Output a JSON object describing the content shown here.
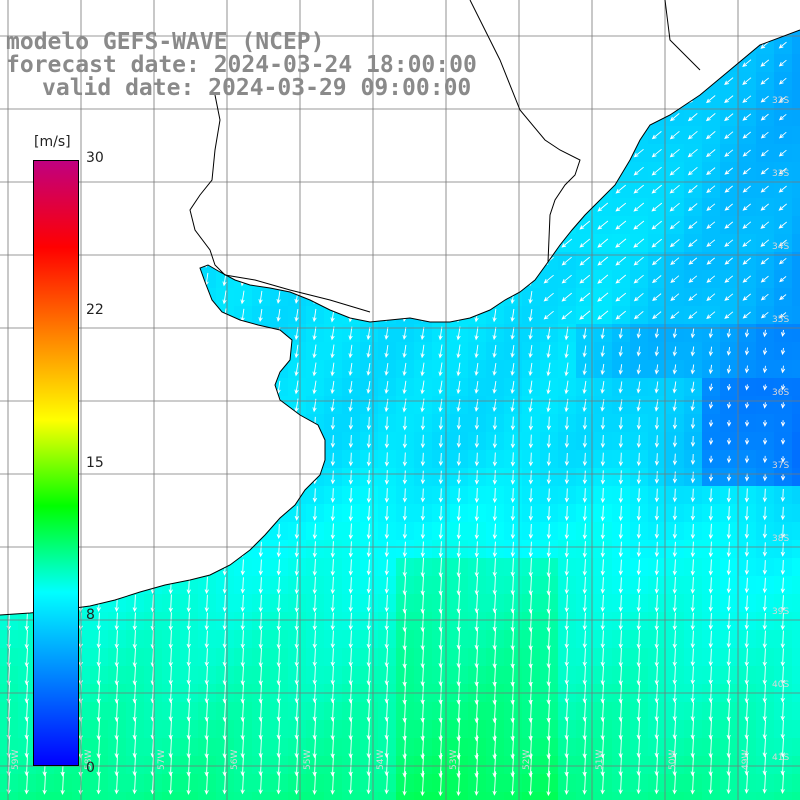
{
  "title": {
    "model": "modelo GEFS-WAVE (NCEP)",
    "forecast": "forecast date: 2024-03-24 18:00:00",
    "valid": "valid date: 2024-03-29 09:00:00"
  },
  "colorbar": {
    "unit": "[m/s]",
    "ticks": [
      "30",
      "22",
      "15",
      "8",
      "0"
    ],
    "range": [
      0,
      30
    ],
    "colors": [
      "#0000ff",
      "#0080ff",
      "#00ffff",
      "#00ff00",
      "#ffff00",
      "#ff8000",
      "#ff0000",
      "#c00080"
    ]
  },
  "map": {
    "land_color": "#ffffff",
    "grid": true,
    "lat_labels": [
      "32S",
      "33S",
      "34S",
      "35S",
      "36S",
      "37S",
      "38S",
      "39S",
      "40S",
      "41S"
    ],
    "lon_labels": [
      "59W",
      "58W",
      "57W",
      "56W",
      "55W",
      "54W",
      "53W",
      "52W",
      "51W",
      "50W",
      "49W"
    ],
    "wind_direction": "from north-northeast"
  }
}
